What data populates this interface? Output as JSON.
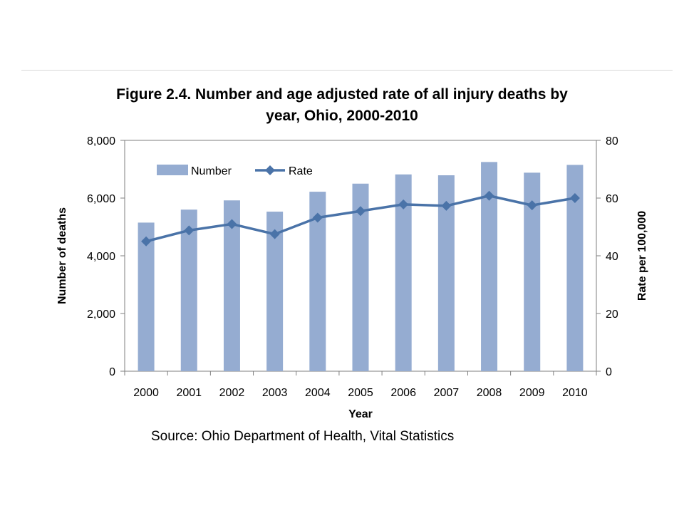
{
  "chart_data": {
    "type": "bar",
    "title": "Figure 2.4. Number and age adjusted rate of all injury deaths by year, Ohio, 2000-2010",
    "title_lines": [
      "Figure 2.4. Number and age adjusted rate of all injury deaths by",
      "year, Ohio, 2000-2010"
    ],
    "xlabel": "Year",
    "ylabel": "Number of deaths",
    "y2label": "Rate per 100,000",
    "categories": [
      "2000",
      "2001",
      "2002",
      "2003",
      "2004",
      "2005",
      "2006",
      "2007",
      "2008",
      "2009",
      "2010"
    ],
    "ylim": [
      0,
      8000
    ],
    "y_ticks": [
      0,
      2000,
      4000,
      6000,
      8000
    ],
    "y_tick_labels": [
      "0",
      "2,000",
      "4,000",
      "6,000",
      "8,000"
    ],
    "y2lim": [
      0,
      80
    ],
    "y2_ticks": [
      0,
      20,
      40,
      60,
      80
    ],
    "y2_tick_labels": [
      "0",
      "20",
      "40",
      "60",
      "80"
    ],
    "series": [
      {
        "name": "Number",
        "type": "bar",
        "axis": "left",
        "color": "#95acd1",
        "values": [
          5150,
          5600,
          5920,
          5530,
          6220,
          6500,
          6820,
          6790,
          7250,
          6880,
          7150
        ]
      },
      {
        "name": "Rate",
        "type": "line",
        "axis": "right",
        "color": "#4a73a8",
        "marker": "diamond",
        "values": [
          45.0,
          48.8,
          51.0,
          47.5,
          53.2,
          55.5,
          57.8,
          57.3,
          60.8,
          57.5,
          60.0
        ]
      }
    ],
    "grid": false,
    "legend_position": "top-left"
  },
  "source": "Source: Ohio Department of Health, Vital Statistics"
}
